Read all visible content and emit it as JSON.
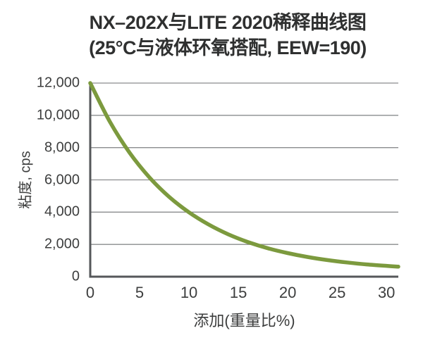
{
  "title": {
    "line1": "NX–202X与LITE 2020稀释曲线图",
    "line2": "(25°C与液体环氧搭配, EEW=190)"
  },
  "chart_data": {
    "type": "line",
    "title": "NX–202X与LITE 2020稀释曲线图",
    "subtitle": "(25°C与液体环氧搭配, EEW=190)",
    "xlabel": "添加(重量比%)",
    "ylabel": "粘度, cps",
    "xlim": [
      0,
      31.2
    ],
    "ylim": [
      0,
      12000
    ],
    "x_tick_values": [
      0,
      5,
      10,
      15,
      20,
      25,
      30
    ],
    "x_tick_labels": [
      "0",
      "5",
      "10",
      "15",
      "20",
      "25",
      "30"
    ],
    "y_tick_values": [
      0,
      2000,
      4000,
      6000,
      8000,
      10000,
      12000
    ],
    "y_tick_labels": [
      "0",
      "2,000",
      "4,000",
      "6,000",
      "8,000",
      "10,000",
      "12,000"
    ],
    "grid": "horizontal",
    "legend": "none",
    "series": [
      {
        "name": "NX-202X与LITE 2020",
        "color": "#7c9a3e",
        "x": [
          0,
          2,
          4,
          6,
          8,
          10,
          12,
          14,
          16,
          18,
          20,
          22,
          24,
          26,
          28,
          30,
          31.2
        ],
        "y": [
          12000,
          9590,
          7670,
          6150,
          4940,
          3990,
          3230,
          2620,
          2140,
          1760,
          1460,
          1220,
          1030,
          880,
          760,
          670,
          620
        ]
      }
    ],
    "colors": {
      "curve": "#7c9a3e",
      "grid": "#8a8c8e",
      "axis": "#55575a",
      "text": "#3d3e3e",
      "background": "#ffffff"
    }
  }
}
